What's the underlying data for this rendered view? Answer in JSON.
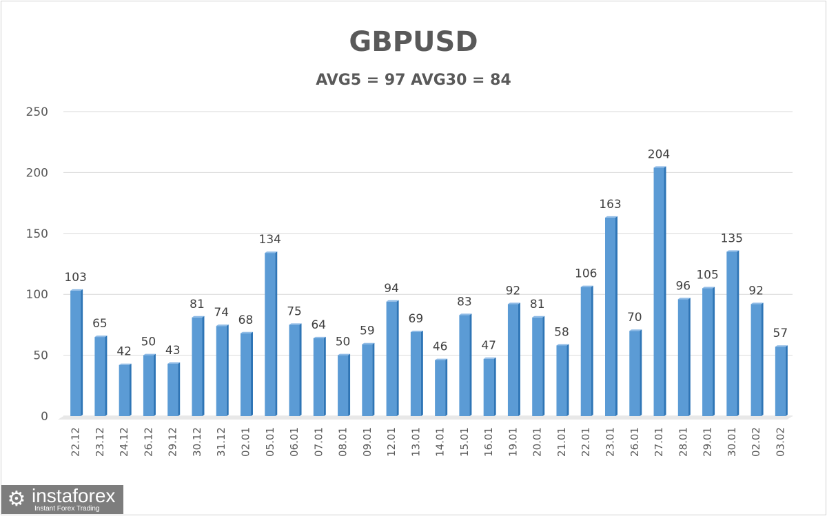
{
  "chart_data": {
    "type": "bar",
    "title": "GBPUSD",
    "subtitle": "AVG5 = 97 AVG30 = 84",
    "xlabel": "",
    "ylabel": "",
    "ylim": [
      0,
      250
    ],
    "yticks": [
      "0",
      "50",
      "100",
      "150",
      "200",
      "250"
    ],
    "grid": true,
    "categories": [
      "22.12",
      "23.12",
      "24.12",
      "26.12",
      "29.12",
      "30.12",
      "31.12",
      "02.01",
      "05.01",
      "06.01",
      "07.01",
      "08.01",
      "09.01",
      "12.01",
      "13.01",
      "14.01",
      "15.01",
      "16.01",
      "19.01",
      "20.01",
      "21.01",
      "22.01",
      "23.01",
      "26.01",
      "27.01",
      "28.01",
      "29.01",
      "30.01",
      "02.02",
      "03.02"
    ],
    "values": [
      103,
      65,
      42,
      50,
      43,
      81,
      74,
      68,
      134,
      75,
      64,
      50,
      59,
      94,
      69,
      46,
      83,
      47,
      92,
      81,
      58,
      106,
      163,
      70,
      204,
      96,
      105,
      135,
      92,
      57
    ],
    "bar_color": "#5b9bd5"
  },
  "watermark": {
    "name": "instaforex",
    "tagline": "Instant Forex Trading"
  }
}
